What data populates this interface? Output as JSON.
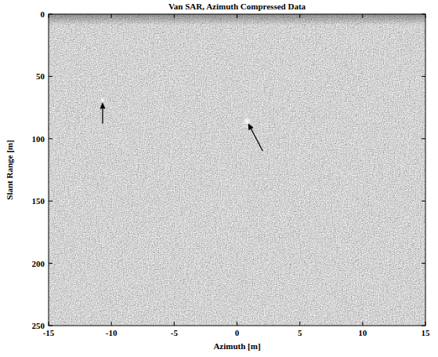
{
  "chart_data": {
    "type": "image",
    "title": "Van SAR, Azimuth Compressed Data",
    "x_label": "Azimuth [m]",
    "y_label": "Slant Range [m]",
    "x": [
      -10.7,
      0.8
    ],
    "values": [
      69,
      86
    ],
    "color": "#ffffff",
    "marker": "circle",
    "xlim": [
      -15,
      15
    ],
    "xticks": [
      -15,
      -10,
      -5,
      0,
      5,
      10,
      15
    ],
    "ylim": [
      0,
      250
    ],
    "yticks": [
      0,
      50,
      100,
      150,
      200,
      250
    ]
  }
}
